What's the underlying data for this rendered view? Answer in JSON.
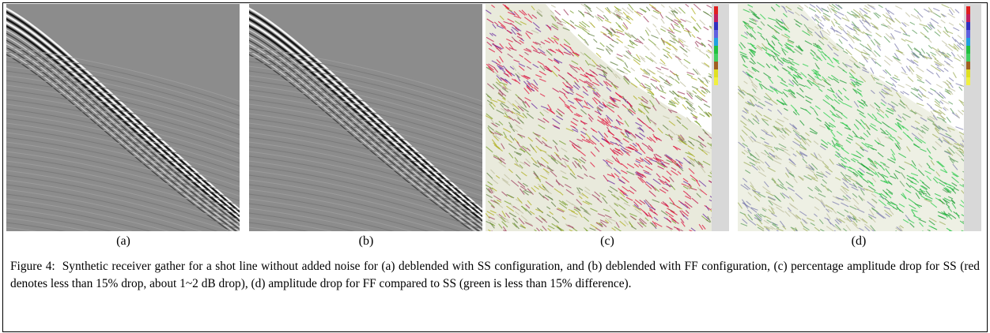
{
  "figure": {
    "panels": [
      {
        "label": "(a)"
      },
      {
        "label": "(b)"
      },
      {
        "label": "(c)"
      },
      {
        "label": "(d)"
      }
    ],
    "caption": "Figure 4:  Synthetic receiver gather for a shot line without added noise for (a) deblended with SS configuration, and (b) deblended with FF configuration, (c) percentage amplitude drop for SS (red denotes less than 15% drop, about 1~2 dB drop), (d) amplitude drop for FF compared to SS (green is less than 15% difference)."
  }
}
